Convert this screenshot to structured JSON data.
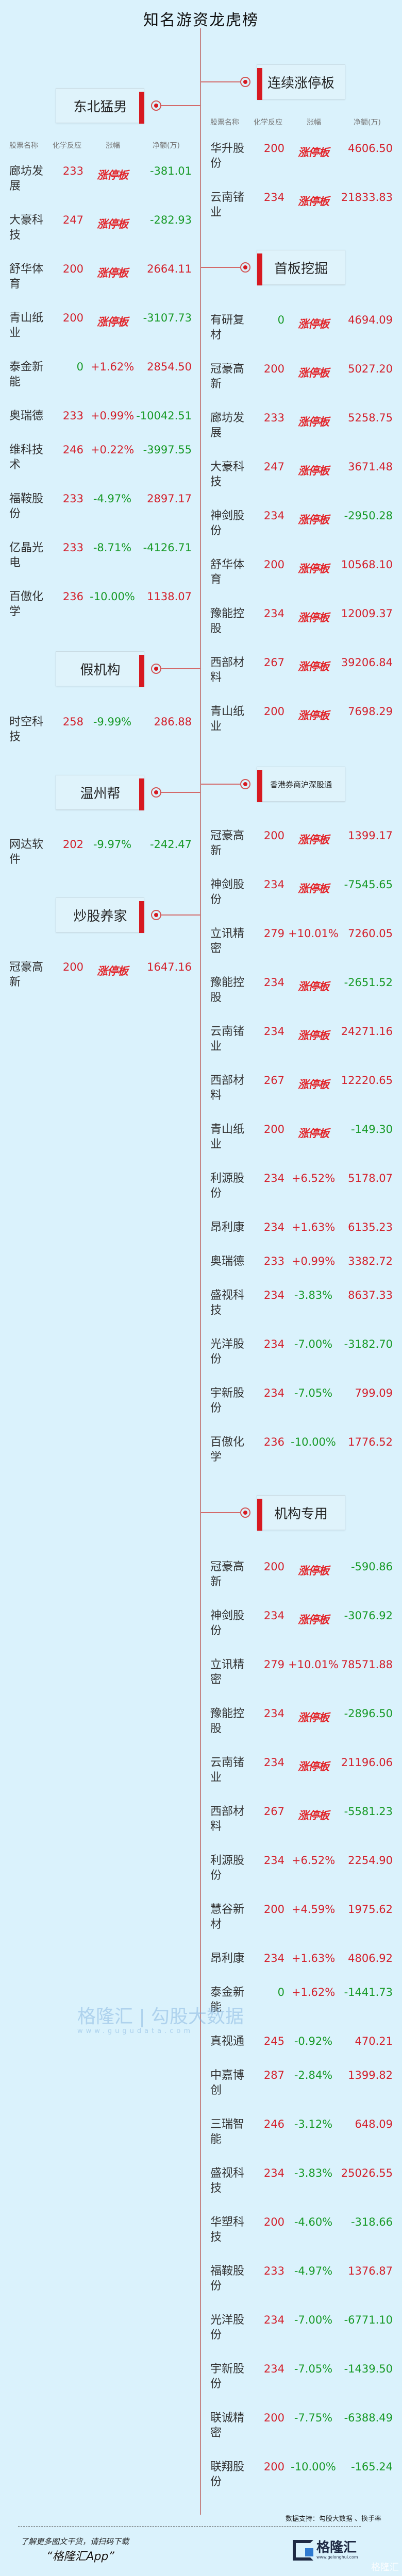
{
  "title": "知名游资龙虎榜",
  "headers": {
    "name": "股票名称",
    "chem": "化学反应",
    "pct": "涨幅",
    "net": "净额(万)"
  },
  "limit_up_label": "涨停板",
  "colors": {
    "background": "#daf2fc",
    "up": "#d4202b",
    "down": "#179a26",
    "accent": "#d71920"
  },
  "left_sections": [
    {
      "title": "东北猛男",
      "rows": [
        {
          "name": "廊坊发展",
          "chem": "233",
          "pct": "涨停板",
          "net": "-381.01"
        },
        {
          "name": "大豪科技",
          "chem": "247",
          "pct": "涨停板",
          "net": "-282.93"
        },
        {
          "name": "舒华体育",
          "chem": "200",
          "pct": "涨停板",
          "net": "2664.11"
        },
        {
          "name": "青山纸业",
          "chem": "200",
          "pct": "涨停板",
          "net": "-3107.73"
        },
        {
          "name": "泰金新能",
          "chem": "0",
          "pct": "+1.62%",
          "net": "2854.50"
        },
        {
          "name": "奥瑞德",
          "chem": "233",
          "pct": "+0.99%",
          "net": "-10042.51"
        },
        {
          "name": "维科技术",
          "chem": "246",
          "pct": "+0.22%",
          "net": "-3997.55"
        },
        {
          "name": "福鞍股份",
          "chem": "233",
          "pct": "-4.97%",
          "net": "2897.17"
        },
        {
          "name": "亿晶光电",
          "chem": "233",
          "pct": "-8.71%",
          "net": "-4126.71"
        },
        {
          "name": "百傲化学",
          "chem": "236",
          "pct": "-10.00%",
          "net": "1138.07"
        }
      ]
    },
    {
      "title": "假机构",
      "rows": [
        {
          "name": "时空科技",
          "chem": "258",
          "pct": "-9.99%",
          "net": "286.88"
        }
      ]
    },
    {
      "title": "温州帮",
      "rows": [
        {
          "name": "网达软件",
          "chem": "202",
          "pct": "-9.97%",
          "net": "-242.47"
        }
      ]
    },
    {
      "title": "炒股养家",
      "rows": [
        {
          "name": "冠豪高新",
          "chem": "200",
          "pct": "涨停板",
          "net": "1647.16"
        }
      ]
    }
  ],
  "right_sections": [
    {
      "title": "连续涨停板",
      "rows": [
        {
          "name": "华升股份",
          "chem": "200",
          "pct": "涨停板",
          "net": "4606.50"
        },
        {
          "name": "云南锗业",
          "chem": "234",
          "pct": "涨停板",
          "net": "21833.83"
        }
      ]
    },
    {
      "title": "首板挖掘",
      "rows": [
        {
          "name": "有研复材",
          "chem": "0",
          "pct": "涨停板",
          "net": "4694.09"
        },
        {
          "name": "冠豪高新",
          "chem": "200",
          "pct": "涨停板",
          "net": "5027.20"
        },
        {
          "name": "廊坊发展",
          "chem": "233",
          "pct": "涨停板",
          "net": "5258.75"
        },
        {
          "name": "大豪科技",
          "chem": "247",
          "pct": "涨停板",
          "net": "3671.48"
        },
        {
          "name": "神剑股份",
          "chem": "234",
          "pct": "涨停板",
          "net": "-2950.28"
        },
        {
          "name": "舒华体育",
          "chem": "200",
          "pct": "涨停板",
          "net": "10568.10"
        },
        {
          "name": "豫能控股",
          "chem": "234",
          "pct": "涨停板",
          "net": "12009.37"
        },
        {
          "name": "西部材料",
          "chem": "267",
          "pct": "涨停板",
          "net": "39206.84"
        },
        {
          "name": "青山纸业",
          "chem": "200",
          "pct": "涨停板",
          "net": "7698.29"
        }
      ]
    },
    {
      "title": "香港券商沪深股通",
      "rows": [
        {
          "name": "冠豪高新",
          "chem": "200",
          "pct": "涨停板",
          "net": "1399.17"
        },
        {
          "name": "神剑股份",
          "chem": "234",
          "pct": "涨停板",
          "net": "-7545.65"
        },
        {
          "name": "立讯精密",
          "chem": "279",
          "pct": "+10.01%",
          "net": "7260.05"
        },
        {
          "name": "豫能控股",
          "chem": "234",
          "pct": "涨停板",
          "net": "-2651.52"
        },
        {
          "name": "云南锗业",
          "chem": "234",
          "pct": "涨停板",
          "net": "24271.16"
        },
        {
          "name": "西部材料",
          "chem": "267",
          "pct": "涨停板",
          "net": "12220.65"
        },
        {
          "name": "青山纸业",
          "chem": "200",
          "pct": "涨停板",
          "net": "-149.30"
        },
        {
          "name": "利源股份",
          "chem": "234",
          "pct": "+6.52%",
          "net": "5178.07"
        },
        {
          "name": "昂利康",
          "chem": "234",
          "pct": "+1.63%",
          "net": "6135.23"
        },
        {
          "name": "奥瑞德",
          "chem": "233",
          "pct": "+0.99%",
          "net": "3382.72"
        },
        {
          "name": "盛视科技",
          "chem": "234",
          "pct": "-3.83%",
          "net": "8637.33"
        },
        {
          "name": "光洋股份",
          "chem": "234",
          "pct": "-7.00%",
          "net": "-3182.70"
        },
        {
          "name": "宇新股份",
          "chem": "234",
          "pct": "-7.05%",
          "net": "799.09"
        },
        {
          "name": "百傲化学",
          "chem": "236",
          "pct": "-10.00%",
          "net": "1776.52"
        }
      ]
    },
    {
      "title": "机构专用",
      "rows": [
        {
          "name": "冠豪高新",
          "chem": "200",
          "pct": "涨停板",
          "net": "-590.86"
        },
        {
          "name": "神剑股份",
          "chem": "234",
          "pct": "涨停板",
          "net": "-3076.92"
        },
        {
          "name": "立讯精密",
          "chem": "279",
          "pct": "+10.01%",
          "net": "78571.88"
        },
        {
          "name": "豫能控股",
          "chem": "234",
          "pct": "涨停板",
          "net": "-2896.50"
        },
        {
          "name": "云南锗业",
          "chem": "234",
          "pct": "涨停板",
          "net": "21196.06"
        },
        {
          "name": "西部材料",
          "chem": "267",
          "pct": "涨停板",
          "net": "-5581.23"
        },
        {
          "name": "利源股份",
          "chem": "234",
          "pct": "+6.52%",
          "net": "2254.90"
        },
        {
          "name": "慧谷新材",
          "chem": "200",
          "pct": "+4.59%",
          "net": "1975.62"
        },
        {
          "name": "昂利康",
          "chem": "234",
          "pct": "+1.63%",
          "net": "4806.92"
        },
        {
          "name": "泰金新能",
          "chem": "0",
          "pct": "+1.62%",
          "net": "-1441.73"
        },
        {
          "name": "真视通",
          "chem": "245",
          "pct": "-0.92%",
          "net": "470.21"
        },
        {
          "name": "中嘉博创",
          "chem": "287",
          "pct": "-2.84%",
          "net": "1399.82"
        },
        {
          "name": "三瑞智能",
          "chem": "246",
          "pct": "-3.12%",
          "net": "648.09"
        },
        {
          "name": "盛视科技",
          "chem": "234",
          "pct": "-3.83%",
          "net": "25026.55"
        },
        {
          "name": "华塑科技",
          "chem": "200",
          "pct": "-4.60%",
          "net": "-318.66"
        },
        {
          "name": "福鞍股份",
          "chem": "233",
          "pct": "-4.97%",
          "net": "1376.87"
        },
        {
          "name": "光洋股份",
          "chem": "234",
          "pct": "-7.00%",
          "net": "-6771.10"
        },
        {
          "name": "宇新股份",
          "chem": "234",
          "pct": "-7.05%",
          "net": "-1439.50"
        },
        {
          "name": "联诚精密",
          "chem": "200",
          "pct": "-7.75%",
          "net": "-6388.49"
        },
        {
          "name": "联翔股份",
          "chem": "200",
          "pct": "-10.00%",
          "net": "-165.24"
        }
      ]
    }
  ],
  "watermark": {
    "text": "格隆汇 | 勾股大数据",
    "url": "www.gugudata.com"
  },
  "footer": {
    "source": "数据支持：勾股大数据 、换手率",
    "promo": "了解更多图文干货，请扫码下载",
    "app": "“格隆汇App”",
    "logo_text": "格隆汇",
    "logo_url": "www.gelonghui.com",
    "corner_mark": "格隆汇"
  }
}
